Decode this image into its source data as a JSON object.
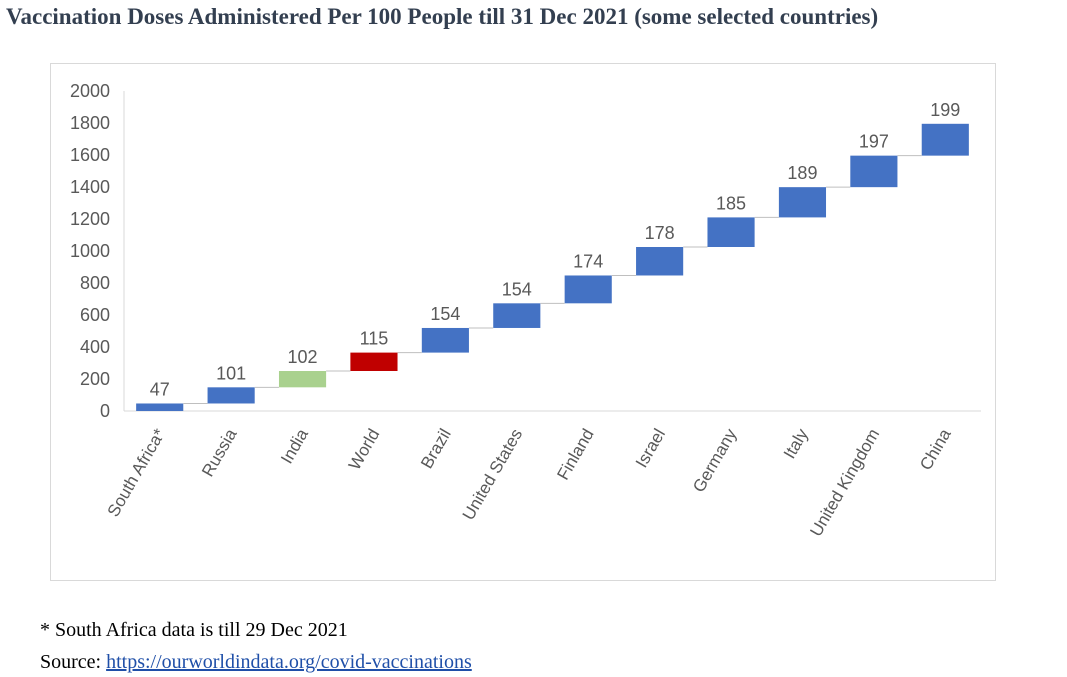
{
  "title": "Vaccination Doses Administered Per 100 People till 31 Dec 2021 (some selected countries)",
  "chart_data": {
    "type": "waterfall",
    "categories": [
      "South Africa*",
      "Russia",
      "India",
      "World",
      "Brazil",
      "United States",
      "Finland",
      "Israel",
      "Germany",
      "Italy",
      "United Kingdom",
      "China"
    ],
    "values": [
      47,
      101,
      102,
      115,
      154,
      154,
      174,
      178,
      185,
      189,
      197,
      199
    ],
    "bar_colors": [
      "#4472c4",
      "#4472c4",
      "#a9d18e",
      "#c00000",
      "#4472c4",
      "#4472c4",
      "#4472c4",
      "#4472c4",
      "#4472c4",
      "#4472c4",
      "#4472c4",
      "#4472c4"
    ],
    "ylim": [
      0,
      2000
    ],
    "yticks": [
      0,
      200,
      400,
      600,
      800,
      1000,
      1200,
      1400,
      1600,
      1800,
      2000
    ],
    "grid": false,
    "legend": "none"
  },
  "footnotes": {
    "note": "* South Africa data is till 29 Dec 2021",
    "source_prefix": "Source: ",
    "source_link": "https://ourworldindata.org/covid-vaccinations"
  }
}
